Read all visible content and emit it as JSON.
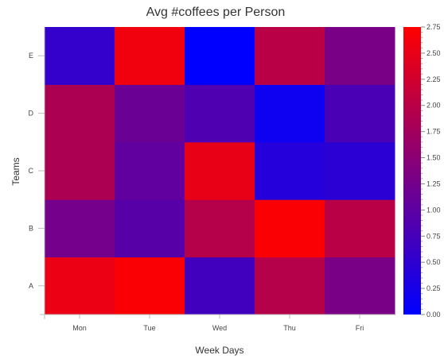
{
  "chart_data": {
    "type": "heatmap",
    "title": "Avg #coffees per Person",
    "xlabel": "Week Days",
    "ylabel": "Teams",
    "x_categories": [
      "Mon",
      "Tue",
      "Wed",
      "Thu",
      "Fri"
    ],
    "y_categories": [
      "A",
      "B",
      "C",
      "D",
      "E"
    ],
    "values": [
      [
        2.55,
        2.7,
        0.7,
        1.95,
        1.3
      ],
      [
        1.25,
        0.95,
        1.95,
        2.7,
        2.0
      ],
      [
        1.85,
        1.05,
        2.5,
        0.4,
        0.45
      ],
      [
        1.85,
        1.15,
        0.85,
        0.15,
        0.8
      ],
      [
        0.55,
        2.6,
        0.0,
        2.0,
        1.3
      ]
    ],
    "colorbar": {
      "min": 0.0,
      "max": 2.75,
      "ticks": [
        "0.00",
        "0.25",
        "0.50",
        "0.75",
        "1.00",
        "1.25",
        "1.50",
        "1.75",
        "2.00",
        "2.25",
        "2.50",
        "2.75"
      ],
      "low_color": "#0000ff",
      "high_color": "#ff0000"
    },
    "grid": false,
    "legend": "right"
  }
}
